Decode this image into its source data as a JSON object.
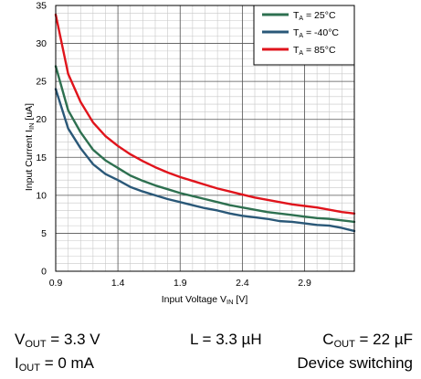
{
  "chart_data": {
    "type": "line",
    "xlabel": "Input Voltage V",
    "xlabel_sub": "IN",
    "xlabel_unit": " [V]",
    "ylabel": "Input Current I",
    "ylabel_sub": "IN",
    "ylabel_unit": " [uA]",
    "xlim": [
      0.9,
      3.3
    ],
    "ylim": [
      0,
      35
    ],
    "xticks": [
      "0.9",
      "1.4",
      "1.9",
      "2.4",
      "2.9"
    ],
    "yticks": [
      "0",
      "5",
      "10",
      "15",
      "20",
      "25",
      "30",
      "35"
    ],
    "grid": true,
    "legend_position": "top-right",
    "series": [
      {
        "name": "T_A = 25°C",
        "label_main": "T",
        "label_sub": "A",
        "label_rest": " = 25°C",
        "color": "#2e7050",
        "x": [
          0.9,
          1.0,
          1.1,
          1.2,
          1.3,
          1.4,
          1.5,
          1.6,
          1.7,
          1.8,
          1.9,
          2.0,
          2.1,
          2.2,
          2.3,
          2.4,
          2.5,
          2.6,
          2.7,
          2.8,
          2.9,
          3.0,
          3.1,
          3.2,
          3.3
        ],
        "y": [
          27.0,
          21.2,
          18.3,
          16.0,
          14.6,
          13.6,
          12.6,
          11.9,
          11.3,
          10.8,
          10.3,
          9.9,
          9.5,
          9.1,
          8.7,
          8.4,
          8.1,
          7.8,
          7.6,
          7.4,
          7.2,
          7.0,
          6.9,
          6.7,
          6.5
        ]
      },
      {
        "name": "T_A = -40°C",
        "label_main": "T",
        "label_sub": "A",
        "label_rest": " = -40°C",
        "color": "#2a5878",
        "x": [
          0.9,
          1.0,
          1.1,
          1.2,
          1.3,
          1.4,
          1.5,
          1.6,
          1.7,
          1.8,
          1.9,
          2.0,
          2.1,
          2.2,
          2.3,
          2.4,
          2.5,
          2.6,
          2.7,
          2.8,
          2.9,
          3.0,
          3.1,
          3.2,
          3.3
        ],
        "y": [
          24.0,
          18.8,
          16.2,
          14.1,
          12.8,
          12.0,
          11.1,
          10.5,
          10.0,
          9.5,
          9.1,
          8.7,
          8.3,
          8.0,
          7.6,
          7.3,
          7.1,
          6.9,
          6.6,
          6.5,
          6.3,
          6.1,
          6.0,
          5.7,
          5.3
        ]
      },
      {
        "name": "T_A = 85°C",
        "label_main": "T",
        "label_sub": "A",
        "label_rest": " = 85°C",
        "color": "#e0141c",
        "x": [
          0.9,
          1.0,
          1.1,
          1.2,
          1.3,
          1.4,
          1.5,
          1.6,
          1.7,
          1.8,
          1.9,
          2.0,
          2.1,
          2.2,
          2.3,
          2.4,
          2.5,
          2.6,
          2.7,
          2.8,
          2.9,
          3.0,
          3.1,
          3.2,
          3.3
        ],
        "y": [
          33.8,
          26.0,
          22.3,
          19.6,
          17.8,
          16.5,
          15.4,
          14.5,
          13.7,
          13.0,
          12.4,
          11.9,
          11.4,
          10.9,
          10.5,
          10.1,
          9.7,
          9.4,
          9.1,
          8.8,
          8.6,
          8.4,
          8.1,
          7.8,
          7.6
        ]
      }
    ]
  },
  "conditions": {
    "vout_main": "V",
    "vout_sub": "OUT",
    "vout_rest": " = 3.3 V",
    "iout_main": "I",
    "iout_sub": "OUT",
    "iout_rest": " = 0 mA",
    "inductor": "L = 3.3 µH",
    "cout_main": "C",
    "cout_sub": "OUT",
    "cout_rest": " = 22 µF",
    "mode": "Device switching"
  }
}
